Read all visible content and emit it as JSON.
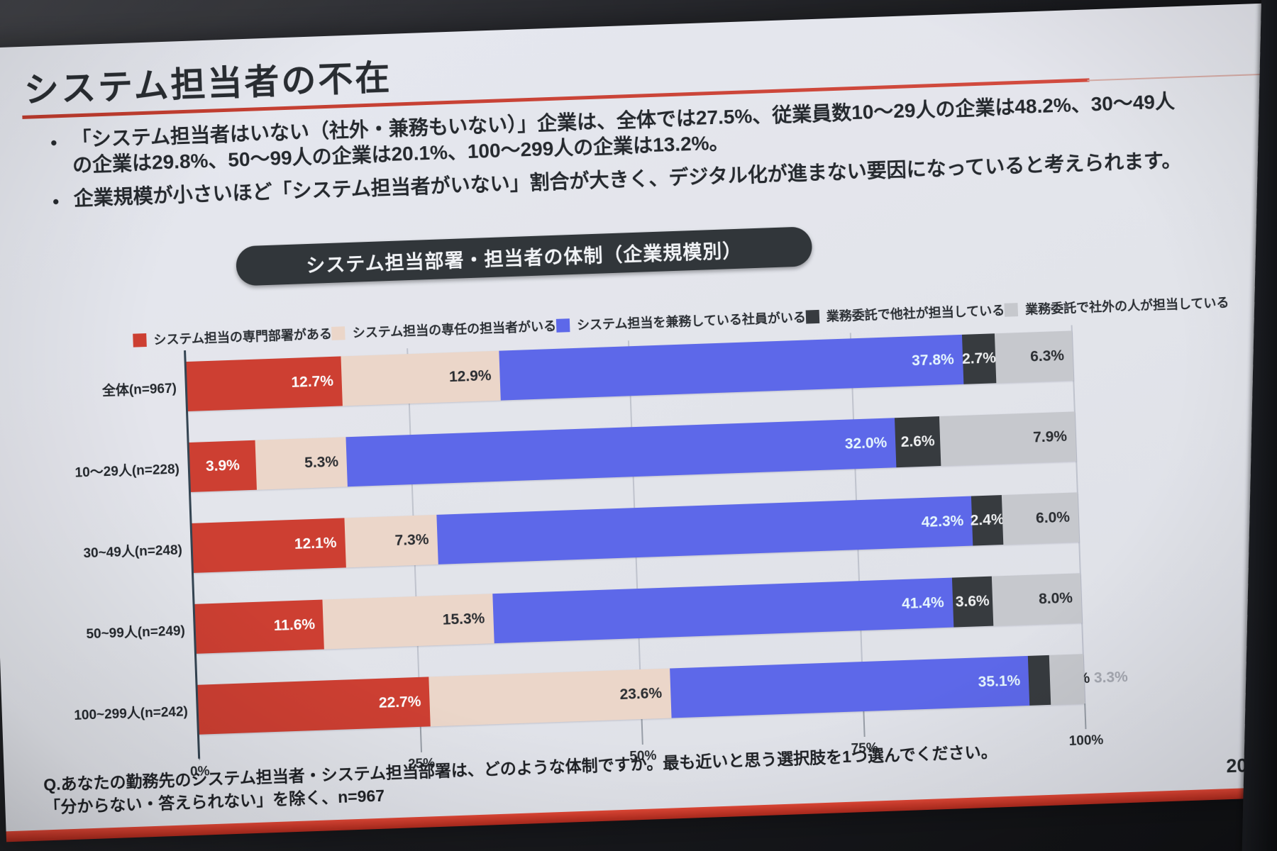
{
  "slide": {
    "title": "システム担当者の不在",
    "bullets": [
      "「システム担当者はいない（社外・兼務もいない）」企業は、全体では27.5%、従業員数10～29人の企業は48.2%、30～49人の企業は29.8%、50～99人の企業は20.1%、100～299人の企業は13.2%。",
      "企業規模が小さいほど「システム担当者がいない」割合が大きく、デジタル化が進まない要因になっていると考えられます。"
    ],
    "chart_box_title": "システム担当部署・担当者の体制（企業規模別）",
    "footer_question": "Q.あなたの勤務先のシステム担当者・システム担当部署は、どのような体制ですか。最も近いと思う選択肢を1つ選んでください。",
    "footer_note": "「分からない・答えられない」を除く、n=967",
    "page_number": "20",
    "accent_red": "#c8392a"
  },
  "chart_data": {
    "type": "bar",
    "stacked": true,
    "orientation": "horizontal",
    "title": "システム担当部署・担当者の体制（企業規模別）",
    "unit": "%",
    "legend_position": "top",
    "x_axis": {
      "ticks": [
        "0%",
        "25%",
        "50%",
        "75%",
        "100%"
      ],
      "tick_values": [
        0,
        25,
        50,
        75,
        100
      ],
      "range": [
        0,
        100
      ],
      "grid": true
    },
    "series": [
      {
        "name": "システム担当の専門部署がある",
        "color": "#cf3a2b",
        "label_color": "#ffffff"
      },
      {
        "name": "システム担当の専任の担当者がいる",
        "color": "#eed7c8",
        "label_color": "#26282b"
      },
      {
        "name": "システム担当を兼務している社員がいる",
        "color": "#5a64ea",
        "label_color": "#e8f8fe"
      },
      {
        "name": "業務委託で他社が担当している",
        "color": "#323639",
        "label_color": "#f2f2f2"
      },
      {
        "name": "業務委託で社外の人が担当している",
        "color": "#c7c8cd",
        "label_color": "#26282b"
      }
    ],
    "categories": [
      "全体(n=967)",
      "10～29人(n=228)",
      "30~49人(n=248)",
      "50~99人(n=249)",
      "100~299人(n=242)"
    ],
    "rows": [
      {
        "category": "全体(n=967)",
        "values": [
          12.7,
          12.9,
          37.8,
          2.7,
          6.3
        ],
        "label_layout": [
          "in",
          "in",
          "in",
          "in",
          "in"
        ]
      },
      {
        "category": "10～29人(n=228)",
        "values": [
          3.9,
          5.3,
          32.0,
          2.6,
          7.9
        ],
        "label_layout": [
          "in",
          "in",
          "in",
          "in",
          "in"
        ]
      },
      {
        "category": "30~49人(n=248)",
        "values": [
          12.1,
          7.3,
          42.3,
          2.4,
          6.0
        ],
        "label_layout": [
          "in",
          "in",
          "in",
          "in",
          "in"
        ]
      },
      {
        "category": "50~99人(n=249)",
        "values": [
          11.6,
          15.3,
          41.4,
          3.6,
          8.0
        ],
        "label_layout": [
          "in",
          "in",
          "in",
          "in",
          "in"
        ]
      },
      {
        "category": "100~299人(n=242)",
        "values": [
          22.7,
          23.6,
          35.1,
          2.1,
          3.3
        ],
        "label_layout": [
          "in",
          "in",
          "in",
          "after",
          "out"
        ]
      }
    ],
    "outside_label_color": "#a4a6ae",
    "notes": "segment widths normalized to row total (100% stacked)"
  }
}
